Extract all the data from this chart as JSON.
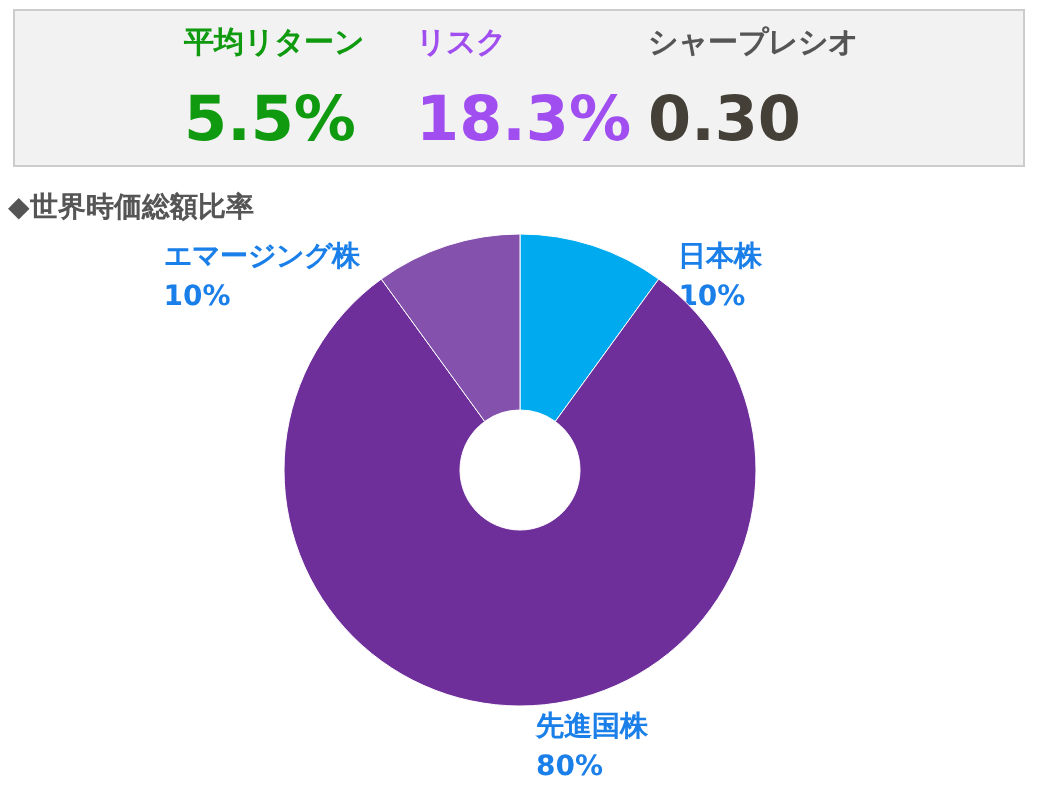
{
  "chart_data": [
    {
      "type": "other",
      "annotations": [
        "平均リターン",
        "5.5%",
        "リスク",
        "18.3%",
        "シャープレシオ",
        "0.30"
      ],
      "colors": [
        "#109a10",
        "#109a10",
        "#a04ef0",
        "#a04ef0",
        "#555555",
        "#444038"
      ]
    },
    {
      "type": "donut",
      "title": "◆世界時価総額比率",
      "categories": [
        "日本株",
        "先進国株",
        "エマージング株"
      ],
      "values": [
        10,
        80,
        10
      ],
      "colors": [
        "#00aaee",
        "#6e2f9a",
        "#8452ad"
      ],
      "value_labels": [
        "10%",
        "80%",
        "10%"
      ]
    }
  ]
}
